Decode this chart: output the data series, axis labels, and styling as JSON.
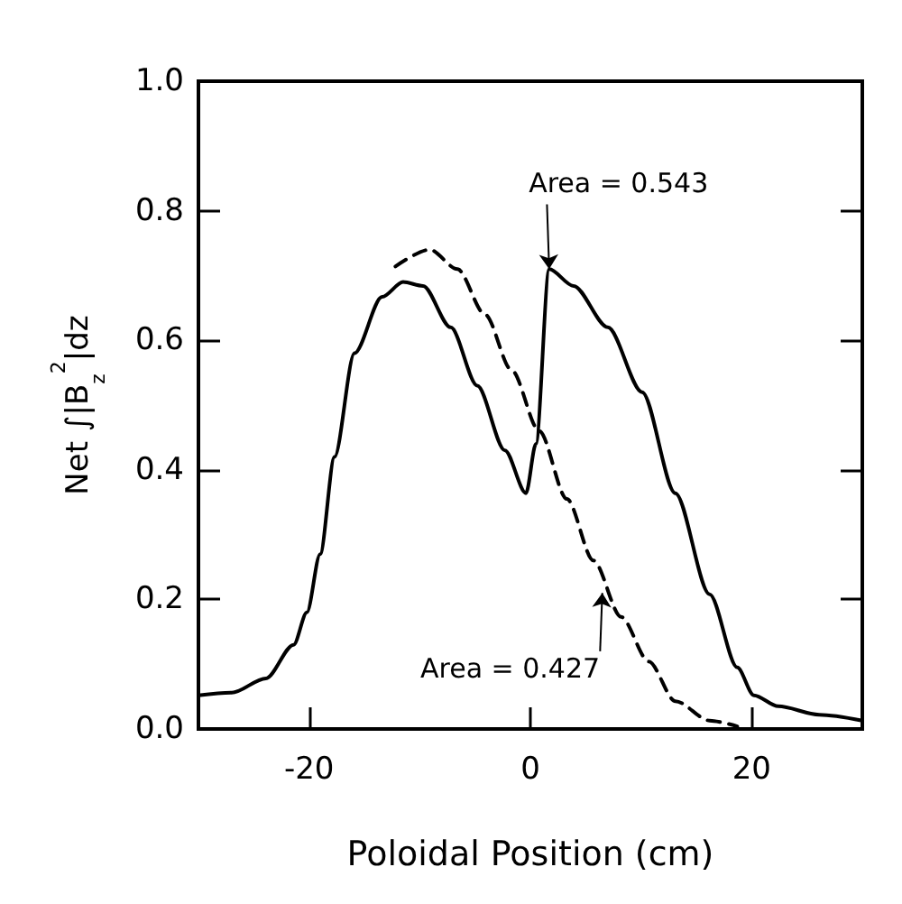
{
  "chart_data": {
    "type": "line",
    "xlabel": "Poloidal Position (cm)",
    "ylabel": "Net ∫|B$_{z}$$^{2}$|dz",
    "xlim": [
      -30,
      30
    ],
    "xticks": [
      -20,
      0,
      20
    ],
    "ylim": [
      0,
      1
    ],
    "yticks": [
      {
        "value": 0,
        "label": "0.0"
      },
      {
        "value": 0.2,
        "label": "0.2"
      },
      {
        "value": 0.4,
        "label": "0.4"
      },
      {
        "value": 0.6,
        "label": "0.6"
      },
      {
        "value": 0.8,
        "label": "0.8"
      },
      {
        "value": 1,
        "label": "1.0"
      }
    ],
    "marker": "none",
    "series": [
      {
        "color": "#000000",
        "line_style": "solid",
        "x": [
          -30,
          -27,
          -23.9,
          -21.4,
          -20.2,
          -19,
          -17.7,
          -15.9,
          -13.4,
          -11.5,
          -9.7,
          -7.2,
          -4.8,
          -2.3,
          -0.4,
          0.5,
          1.7,
          3.9,
          7,
          10.1,
          13.1,
          16.2,
          18.7,
          20.2,
          22.4,
          26.1,
          30
        ],
        "values": [
          0.052,
          0.056,
          0.078,
          0.13,
          0.18,
          0.27,
          0.42,
          0.58,
          0.667,
          0.69,
          0.684,
          0.62,
          0.53,
          0.43,
          0.364,
          0.44,
          0.71,
          0.684,
          0.62,
          0.52,
          0.364,
          0.208,
          0.095,
          0.052,
          0.035,
          0.022,
          0.013
        ]
      },
      {
        "color": "#000000",
        "line_style": "dashed",
        "x": [
          -12.2,
          -9.1,
          -6.6,
          -4.1,
          -1.7,
          0.8,
          3.3,
          5.7,
          8.2,
          10.7,
          13.1,
          16.2,
          18.7
        ],
        "values": [
          0.714,
          0.74,
          0.71,
          0.64,
          0.554,
          0.46,
          0.355,
          0.26,
          0.173,
          0.104,
          0.043,
          0.013,
          0.004
        ]
      }
    ],
    "annotations": [
      {
        "text": "Area = 0.543",
        "x": 1.7,
        "y": 0.71
      },
      {
        "text": "Area = 0.427",
        "x": 6.5,
        "y": 0.21
      }
    ]
  }
}
